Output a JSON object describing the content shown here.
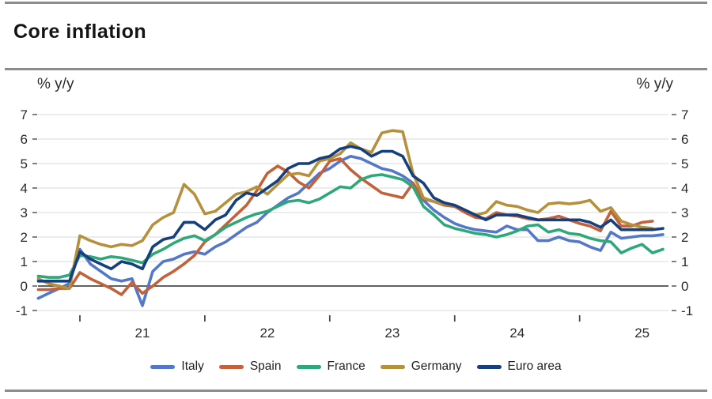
{
  "header": {
    "title": "Core inflation"
  },
  "axis": {
    "unit_left": "% y/y",
    "unit_right": "% y/y"
  },
  "colors": {
    "grid": "#d9d9d9",
    "zero_line": "#2f2f2f",
    "tick": "#4a4a4a",
    "rule": "#8c8c8c"
  },
  "chart_data": {
    "type": "line",
    "title": "Core inflation",
    "ylabel": "% y/y",
    "ylim": [
      -1,
      7
    ],
    "ytick_step": 1,
    "grid": "horizontal",
    "legend_position": "bottom",
    "x_start": "2020-09",
    "x_frequency": "monthly",
    "x_year_ticks": [
      "21",
      "22",
      "23",
      "24",
      "25"
    ],
    "series": [
      {
        "name": "Italy",
        "color": "#5577c9",
        "values": [
          -0.5,
          -0.3,
          -0.1,
          0.1,
          1.5,
          0.9,
          0.6,
          0.3,
          0.2,
          0.3,
          -0.8,
          0.6,
          1.0,
          1.1,
          1.3,
          1.4,
          1.3,
          1.6,
          1.8,
          2.1,
          2.4,
          2.6,
          3.0,
          3.3,
          3.6,
          3.8,
          4.2,
          4.6,
          4.8,
          5.1,
          5.3,
          5.2,
          5.0,
          4.8,
          4.7,
          4.5,
          4.2,
          3.5,
          3.1,
          2.8,
          2.55,
          2.4,
          2.3,
          2.25,
          2.2,
          2.45,
          2.3,
          2.3,
          1.85,
          1.85,
          2.0,
          1.85,
          1.8,
          1.6,
          1.45,
          2.2,
          1.95,
          2.0,
          2.05,
          2.05,
          2.1
        ]
      },
      {
        "name": "Spain",
        "color": "#c3613b",
        "values": [
          -0.15,
          -0.15,
          -0.1,
          -0.1,
          0.55,
          0.3,
          0.1,
          -0.1,
          -0.35,
          0.15,
          -0.3,
          0.0,
          0.35,
          0.6,
          0.9,
          1.25,
          1.8,
          2.1,
          2.5,
          2.9,
          3.3,
          3.9,
          4.6,
          4.9,
          4.65,
          4.25,
          4.0,
          4.5,
          5.1,
          5.2,
          4.75,
          4.4,
          4.1,
          3.8,
          3.7,
          3.6,
          4.2,
          3.55,
          3.45,
          3.3,
          3.25,
          3.0,
          2.8,
          2.75,
          3.0,
          2.9,
          2.85,
          2.75,
          2.7,
          2.75,
          2.85,
          2.7,
          2.55,
          2.45,
          2.25,
          3.05,
          2.45,
          2.45,
          2.6,
          2.65
        ]
      },
      {
        "name": "France",
        "color": "#2fa879",
        "values": [
          0.4,
          0.35,
          0.35,
          0.45,
          1.25,
          1.2,
          1.1,
          1.2,
          1.15,
          1.05,
          0.95,
          1.3,
          1.5,
          1.75,
          1.95,
          2.05,
          1.85,
          2.1,
          2.4,
          2.6,
          2.8,
          2.95,
          3.05,
          3.25,
          3.45,
          3.5,
          3.4,
          3.55,
          3.8,
          4.05,
          4.0,
          4.35,
          4.5,
          4.55,
          4.45,
          4.35,
          4.05,
          3.25,
          2.9,
          2.5,
          2.35,
          2.25,
          2.15,
          2.1,
          2.0,
          2.1,
          2.25,
          2.45,
          2.5,
          2.2,
          2.3,
          2.15,
          2.1,
          1.95,
          1.85,
          1.8,
          1.35,
          1.55,
          1.7,
          1.35,
          1.5
        ]
      },
      {
        "name": "Germany",
        "color": "#b5913d",
        "values": [
          0.3,
          0.1,
          0.0,
          -0.1,
          2.05,
          1.85,
          1.7,
          1.6,
          1.7,
          1.65,
          1.85,
          2.5,
          2.8,
          3.0,
          4.15,
          3.75,
          2.95,
          3.05,
          3.4,
          3.75,
          3.85,
          4.05,
          3.75,
          4.15,
          4.55,
          4.6,
          4.5,
          5.1,
          5.2,
          5.4,
          5.85,
          5.6,
          5.45,
          6.25,
          6.35,
          6.3,
          4.6,
          3.6,
          3.45,
          3.35,
          3.3,
          3.1,
          2.9,
          3.0,
          3.45,
          3.3,
          3.25,
          3.1,
          3.0,
          3.35,
          3.4,
          3.35,
          3.4,
          3.5,
          3.05,
          3.2,
          2.65,
          2.5,
          2.4,
          2.35
        ]
      },
      {
        "name": "Euro area",
        "color": "#173f7d",
        "values": [
          0.2,
          0.2,
          0.2,
          0.2,
          1.4,
          1.1,
          0.9,
          0.7,
          1.0,
          0.9,
          0.7,
          1.6,
          1.9,
          2.0,
          2.6,
          2.6,
          2.3,
          2.7,
          2.9,
          3.5,
          3.8,
          3.7,
          4.0,
          4.3,
          4.8,
          5.0,
          5.0,
          5.2,
          5.3,
          5.6,
          5.7,
          5.6,
          5.3,
          5.5,
          5.5,
          5.3,
          4.5,
          4.2,
          3.6,
          3.4,
          3.3,
          3.1,
          2.9,
          2.7,
          2.9,
          2.9,
          2.9,
          2.8,
          2.7,
          2.7,
          2.7,
          2.7,
          2.7,
          2.6,
          2.4,
          2.7,
          2.3,
          2.3,
          2.3,
          2.3,
          2.35
        ]
      }
    ]
  }
}
